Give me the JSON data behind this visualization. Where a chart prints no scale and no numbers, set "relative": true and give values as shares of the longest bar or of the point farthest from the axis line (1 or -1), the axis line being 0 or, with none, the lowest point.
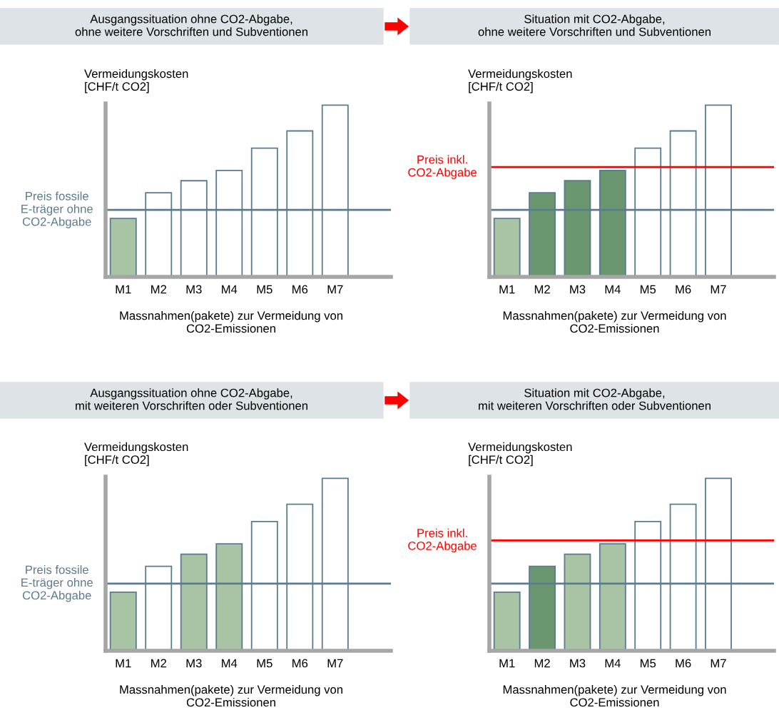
{
  "chart_data": [
    {
      "type": "bar",
      "relative": true,
      "title": "Ausgangssituation ohne CO2-Abgabe,\nohne weitere Vorschriften und Subventionen",
      "ylabel": "Vermeidungskosten\n[CHF/t CO2]",
      "xlabel": "Massnahmen(pakete) zur Vermeidung von\nCO2-Emissionen",
      "categories": [
        "M1",
        "M2",
        "M3",
        "M4",
        "M5",
        "M6",
        "M7"
      ],
      "values": [
        0.34,
        0.49,
        0.56,
        0.62,
        0.75,
        0.85,
        1.0
      ],
      "colors": [
        "#a9c4a5",
        "#ffffff",
        "#ffffff",
        "#ffffff",
        "#ffffff",
        "#ffffff",
        "#ffffff"
      ],
      "ref_lines": [
        {
          "axis": "y",
          "value": 0.39,
          "label": "Preis fossile\nE-träger ohne\nCO2-Abgabe",
          "color": "#5b7b8f"
        }
      ]
    },
    {
      "type": "bar",
      "relative": true,
      "title": "Situation mit CO2-Abgabe,\nohne weitere Vorschriften und Subventionen",
      "ylabel": "Vermeidungskosten\n[CHF/t CO2]",
      "xlabel": "Massnahmen(pakete) zur Vermeidung von\nCO2-Emissionen",
      "categories": [
        "M1",
        "M2",
        "M3",
        "M4",
        "M5",
        "M6",
        "M7"
      ],
      "values": [
        0.34,
        0.49,
        0.56,
        0.62,
        0.75,
        0.85,
        1.0
      ],
      "colors": [
        "#a9c4a5",
        "#6a9670",
        "#6a9670",
        "#6a9670",
        "#ffffff",
        "#ffffff",
        "#ffffff"
      ],
      "ref_lines": [
        {
          "axis": "y",
          "value": 0.39,
          "color": "#5b7b8f"
        },
        {
          "axis": "y",
          "value": 0.64,
          "label": "Preis inkl.\nCO2-Abgabe",
          "color": "#ff0000"
        }
      ]
    },
    {
      "type": "bar",
      "relative": true,
      "title": "Ausgangssituation ohne CO2-Abgabe,\nmit weiteren Vorschriften oder Subventionen",
      "ylabel": "Vermeidungskosten\n[CHF/t CO2]",
      "xlabel": "Massnahmen(pakete) zur Vermeidung von\nCO2-Emissionen",
      "categories": [
        "M1",
        "M2",
        "M3",
        "M4",
        "M5",
        "M6",
        "M7"
      ],
      "values": [
        0.34,
        0.49,
        0.56,
        0.62,
        0.75,
        0.85,
        1.0
      ],
      "colors": [
        "#a9c4a5",
        "#ffffff",
        "#a9c4a5",
        "#a9c4a5",
        "#ffffff",
        "#ffffff",
        "#ffffff"
      ],
      "ref_lines": [
        {
          "axis": "y",
          "value": 0.39,
          "label": "Preis fossile\nE-träger ohne\nCO2-Abgabe",
          "color": "#5b7b8f"
        }
      ]
    },
    {
      "type": "bar",
      "relative": true,
      "title": "Situation mit CO2-Abgabe,\nmit weiteren Vorschriften oder Subventionen",
      "ylabel": "Vermeidungskosten\n[CHF/t CO2]",
      "xlabel": "Massnahmen(pakete) zur Vermeidung von\nCO2-Emissionen",
      "categories": [
        "M1",
        "M2",
        "M3",
        "M4",
        "M5",
        "M6",
        "M7"
      ],
      "values": [
        0.34,
        0.49,
        0.56,
        0.62,
        0.75,
        0.85,
        1.0
      ],
      "colors": [
        "#a9c4a5",
        "#6a9670",
        "#a9c4a5",
        "#a9c4a5",
        "#ffffff",
        "#ffffff",
        "#ffffff"
      ],
      "ref_lines": [
        {
          "axis": "y",
          "value": 0.39,
          "color": "#5b7b8f"
        },
        {
          "axis": "y",
          "value": 0.64,
          "label": "Preis inkl.\nCO2-Abgabe",
          "color": "#ff0000"
        }
      ]
    }
  ]
}
